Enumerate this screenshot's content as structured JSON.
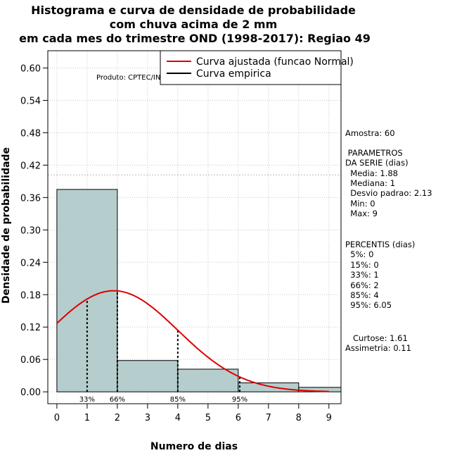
{
  "chart_data": {
    "type": "histogram",
    "title": [
      "Histograma e curva de densidade de probabilidade",
      "com chuva acima de 2 mm",
      "em cada mes do trimestre OND (1998-2017): Regiao 49"
    ],
    "xlabel": "Numero de dias",
    "ylabel": "Densidade de probabilidade",
    "xlim": [
      -0.3,
      9.4
    ],
    "ylim": [
      -0.022,
      0.632
    ],
    "xticks": [
      "0",
      "1",
      "2",
      "3",
      "4",
      "5",
      "6",
      "7",
      "8",
      "9"
    ],
    "xtick_values": [
      0,
      1,
      2,
      3,
      4,
      5,
      6,
      7,
      8,
      9
    ],
    "yticks": [
      "0.00",
      "0.06",
      "0.12",
      "0.18",
      "0.24",
      "0.30",
      "0.36",
      "0.42",
      "0.48",
      "0.54",
      "0.60"
    ],
    "ytick_values": [
      0,
      0.06,
      0.12,
      0.18,
      0.24,
      0.3,
      0.36,
      0.42,
      0.48,
      0.54,
      0.6
    ],
    "bins": [
      {
        "start": 0,
        "end": 2,
        "density": 0.375
      },
      {
        "start": 2,
        "end": 4,
        "density": 0.058
      },
      {
        "start": 4,
        "end": 6,
        "density": 0.042
      },
      {
        "start": 6,
        "end": 8,
        "density": 0.0167
      },
      {
        "start": 8,
        "end": 10,
        "density": 0.0083
      }
    ],
    "bar_color": "#b6cdcd",
    "normal_curve": {
      "mean": 1.88,
      "sd": 2.13,
      "color": "#dd0000"
    },
    "hline": 0.402,
    "percentile_lines": [
      {
        "label": "33%",
        "x": 1
      },
      {
        "label": "66%",
        "x": 2
      },
      {
        "label": "85%",
        "x": 4
      },
      {
        "label": "95%",
        "x": 6.05
      }
    ],
    "legend": [
      {
        "label": "Curva ajustada (funcao Normal)",
        "color": "#dd0000"
      },
      {
        "label": "Curva empirica",
        "color": "#000000"
      }
    ],
    "credit": "Produto: CPTEC/INPE"
  },
  "stats": {
    "amostra": "Amostra: 60",
    "param_title1": " PARAMETROS",
    "param_title2": "DA SERIE (dias)",
    "media": "  Media: 1.88",
    "mediana": "  Mediana: 1",
    "desvio": "  Desvio padrao: 2.13",
    "min": "  Min: 0",
    "max": "  Max: 9",
    "perc_title": "PERCENTIS (dias)",
    "p5": "  5%: 0",
    "p15": "  15%: 0",
    "p33": "  33%: 1",
    "p66": "  66%: 2",
    "p85": "  85%: 4",
    "p95": "  95%: 6.05",
    "curtose": "   Curtose: 1.61",
    "assimetria": "Assimetria: 0.11"
  }
}
